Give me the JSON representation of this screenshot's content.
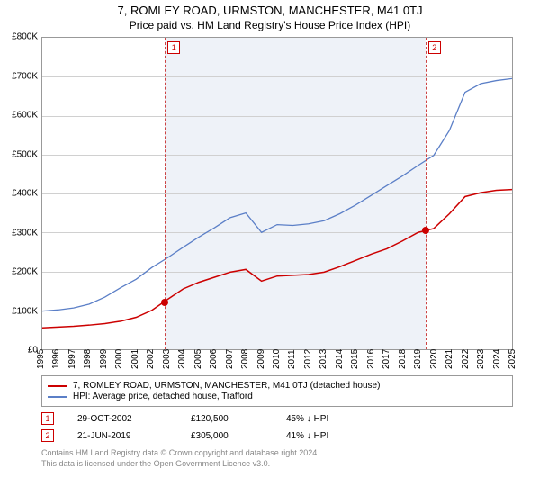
{
  "title": "7, ROMLEY ROAD, URMSTON, MANCHESTER, M41 0TJ",
  "subtitle": "Price paid vs. HM Land Registry's House Price Index (HPI)",
  "chart": {
    "type": "line",
    "x_years": [
      1995,
      1996,
      1997,
      1998,
      1999,
      2000,
      2001,
      2002,
      2003,
      2004,
      2005,
      2006,
      2007,
      2008,
      2009,
      2010,
      2011,
      2012,
      2013,
      2014,
      2015,
      2016,
      2017,
      2018,
      2019,
      2020,
      2021,
      2022,
      2023,
      2024,
      2025
    ],
    "ylim": [
      0,
      800000
    ],
    "ytick_step": 100000,
    "ytick_labels": [
      "£0",
      "£100K",
      "£200K",
      "£300K",
      "£400K",
      "£500K",
      "£600K",
      "£700K",
      "£800K"
    ],
    "grid_color": "#d0d0d0",
    "background_color": "#ffffff",
    "shade_color": "#eef2f8",
    "axis_fontsize": 10,
    "series": {
      "property": {
        "color": "#cc0000",
        "line_width": 1.5,
        "ys": [
          55000,
          57000,
          59000,
          62000,
          66000,
          72000,
          82000,
          100000,
          128000,
          155000,
          172000,
          185000,
          198000,
          205000,
          175000,
          188000,
          190000,
          192000,
          198000,
          212000,
          228000,
          244000,
          258000,
          278000,
          300000,
          310000,
          348000,
          392000,
          402000,
          408000,
          410000
        ]
      },
      "hpi": {
        "color": "#5b7fc7",
        "line_width": 1.3,
        "ys": [
          98000,
          101000,
          106000,
          116000,
          134000,
          158000,
          180000,
          210000,
          235000,
          262000,
          288000,
          312000,
          338000,
          350000,
          300000,
          320000,
          318000,
          322000,
          330000,
          348000,
          370000,
          395000,
          420000,
          445000,
          472000,
          498000,
          562000,
          660000,
          682000,
          690000,
          695000
        ]
      }
    },
    "markers": [
      {
        "label": "1",
        "year": 2002.83,
        "price": 120500
      },
      {
        "label": "2",
        "year": 2019.47,
        "price": 305000
      }
    ]
  },
  "legend": {
    "items": [
      {
        "color": "#cc0000",
        "text": "7, ROMLEY ROAD, URMSTON, MANCHESTER, M41 0TJ (detached house)"
      },
      {
        "color": "#5b7fc7",
        "text": "HPI: Average price, detached house, Trafford"
      }
    ]
  },
  "events": [
    {
      "label": "1",
      "date": "29-OCT-2002",
      "price": "£120,500",
      "diff": "45% ↓ HPI"
    },
    {
      "label": "2",
      "date": "21-JUN-2019",
      "price": "£305,000",
      "diff": "41% ↓ HPI"
    }
  ],
  "footer": {
    "line1": "Contains HM Land Registry data © Crown copyright and database right 2024.",
    "line2": "This data is licensed under the Open Government Licence v3.0."
  }
}
